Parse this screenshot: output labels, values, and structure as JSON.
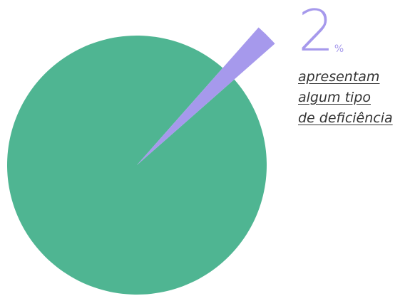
{
  "chart_data": {
    "type": "pie",
    "slices": [
      {
        "label": "",
        "value": 98,
        "color": "#4fb592"
      },
      {
        "label": "",
        "value": 2,
        "color": "#a699ec"
      }
    ],
    "title": "",
    "legend": "none"
  },
  "annotation": {
    "value": "2",
    "unit": "%",
    "caption_lines": [
      "apresentam",
      "algum tipo",
      "de deficiência"
    ]
  }
}
